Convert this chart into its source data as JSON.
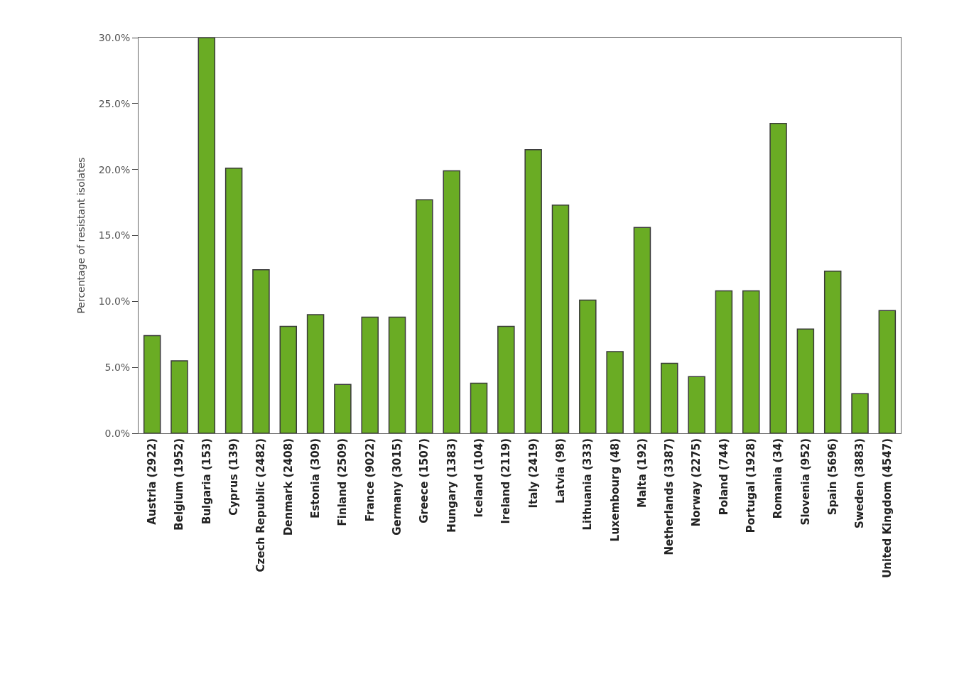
{
  "chart_data": {
    "type": "bar",
    "ylabel": "Percentage of resistant isolates",
    "categories": [
      "Austria (2922)",
      "Belgium (1952)",
      "Bulgaria (153)",
      "Cyprus (139)",
      "Czech Republic (2482)",
      "Denmark (2408)",
      "Estonia (309)",
      "Finland (2509)",
      "France (9022)",
      "Germany (3015)",
      "Greece (1507)",
      "Hungary (1383)",
      "Iceland (104)",
      "Ireland (2119)",
      "Italy (2419)",
      "Latvia (98)",
      "Lithuania (333)",
      "Luxembourg (48)",
      "Malta (192)",
      "Netherlands (3387)",
      "Norway (2275)",
      "Poland (744)",
      "Portugal (1928)",
      "Romania (34)",
      "Slovenia (952)",
      "Spain (5696)",
      "Sweden (3883)",
      "United Kingdom (4547)"
    ],
    "values": [
      7.4,
      5.5,
      30.0,
      20.1,
      12.4,
      8.1,
      9.0,
      3.7,
      8.8,
      8.8,
      17.7,
      19.9,
      3.8,
      8.1,
      21.5,
      17.3,
      10.1,
      6.2,
      15.6,
      5.3,
      4.3,
      10.8,
      10.8,
      23.5,
      7.9,
      12.3,
      3.0,
      9.3
    ],
    "color": "#6aac24",
    "ylim": [
      0,
      30
    ],
    "yticks": [
      {
        "value": 0,
        "label": "0.0%"
      },
      {
        "value": 5,
        "label": "5.0%"
      },
      {
        "value": 10,
        "label": "10.0%"
      },
      {
        "value": 15,
        "label": "15.0%"
      },
      {
        "value": 20,
        "label": "20.0%"
      },
      {
        "value": 25,
        "label": "25.0%"
      },
      {
        "value": 30,
        "label": "30.0%"
      }
    ]
  }
}
